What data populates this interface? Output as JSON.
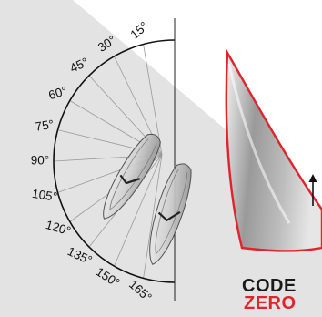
{
  "polar_diagram": {
    "angles": [
      {
        "label": "15°",
        "degrees": 15
      },
      {
        "label": "30°",
        "degrees": 30
      },
      {
        "label": "45°",
        "degrees": 45
      },
      {
        "label": "60°",
        "degrees": 60
      },
      {
        "label": "75°",
        "degrees": 75
      },
      {
        "label": "90°",
        "degrees": 90
      },
      {
        "label": "105°",
        "degrees": 105
      },
      {
        "label": "120°",
        "degrees": 120
      },
      {
        "label": "135°",
        "degrees": 135
      },
      {
        "label": "150°",
        "degrees": 150
      },
      {
        "label": "165°",
        "degrees": 165
      }
    ]
  },
  "brand": {
    "line1": "CODE",
    "line2": "ZERO",
    "color_line1": "#1a1a1a",
    "color_line2": "#e0242b"
  },
  "colors": {
    "background_shade": "#e3e3e3",
    "sail_edge": "#e0242b",
    "arc": "#111111"
  }
}
